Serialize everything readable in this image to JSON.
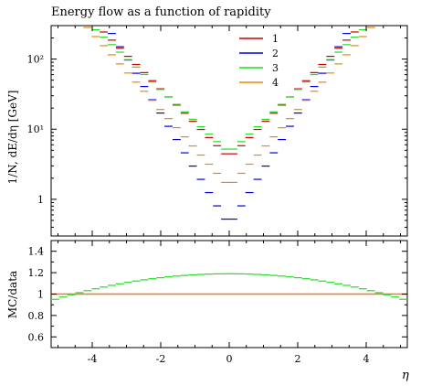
{
  "chart_data": [
    {
      "type": "line",
      "title": "Energy flow as a function of rapidity",
      "ylabel": "1/N, dE/dη [GeV]",
      "xlabel": "",
      "xlim": [
        -5.2,
        5.2
      ],
      "ylim": [
        0.3,
        300
      ],
      "yscale": "log",
      "grid": false,
      "legend": "top-right",
      "x_ticks": [
        "-4",
        "-2",
        "0",
        "2",
        "4"
      ],
      "y_ticks": [
        "1",
        "10¹",
        "10²"
      ],
      "x_edges_rule": "44 equal bins of width 0.2364 from -5.2 to 5.2",
      "series": [
        {
          "name": "1",
          "color": "#cc0000",
          "center": 3.9,
          "slope": 0.49
        },
        {
          "name": "2",
          "color": "#0000dd",
          "center": 0.42,
          "slope": 0.8
        },
        {
          "name": "3",
          "color": "#22dd22",
          "center": 4.6,
          "slope": 0.45
        },
        {
          "name": "4",
          "color": "#ee8800",
          "center": 1.5,
          "slope": 0.55
        }
      ]
    },
    {
      "type": "line",
      "title": "",
      "ylabel": "MC/data",
      "xlabel": "η",
      "xlim": [
        -5.2,
        5.2
      ],
      "ylim": [
        0.5,
        1.5
      ],
      "y_ticks": [
        "0.6",
        "0.8",
        "1",
        "1.2",
        "1.4"
      ],
      "x_ticks": [
        "-4",
        "-2",
        "0",
        "2",
        "4"
      ],
      "series": [
        {
          "name": "1",
          "color": "#cc0000",
          "values": "constant 1.0"
        },
        {
          "name": "3",
          "color": "#22dd22",
          "peak": 1.19,
          "edge": 0.94
        },
        {
          "name": "4",
          "color": "#ee8800",
          "values": "constant 1.0"
        }
      ]
    }
  ]
}
